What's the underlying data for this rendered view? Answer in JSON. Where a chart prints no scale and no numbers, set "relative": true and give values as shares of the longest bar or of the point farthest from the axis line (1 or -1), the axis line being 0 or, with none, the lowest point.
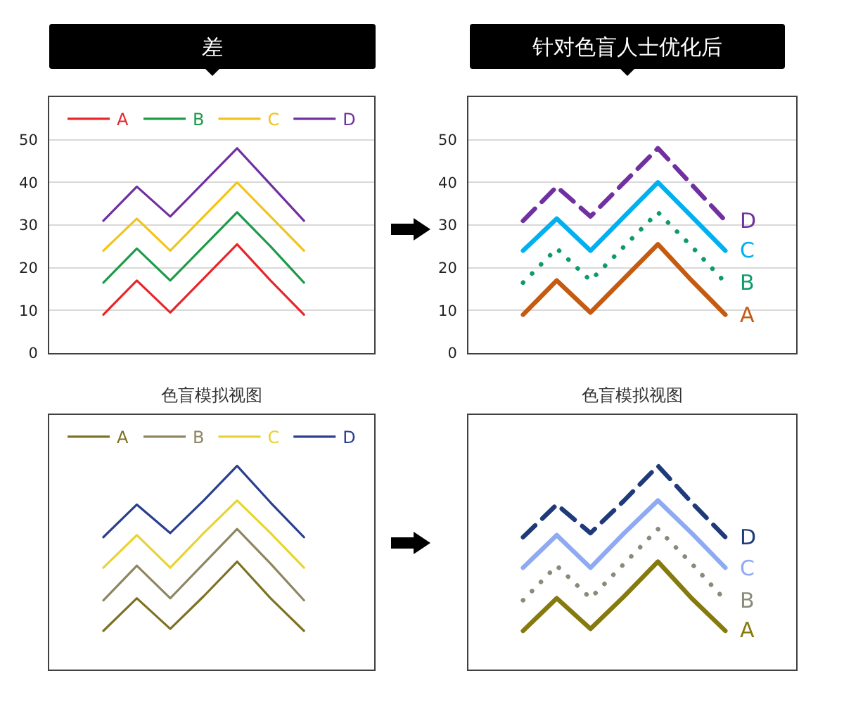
{
  "chart_data": [
    {
      "type": "line",
      "title": "差",
      "categories": [
        null,
        null,
        null,
        null,
        null,
        null,
        null
      ],
      "series": [
        {
          "name": "A",
          "color": "#e6262a",
          "values": [
            9,
            17,
            9.5,
            17.5,
            25.5,
            17,
            9
          ]
        },
        {
          "name": "B",
          "color": "#1e9a48",
          "values": [
            16.5,
            24.5,
            17,
            25,
            33,
            25,
            16.5
          ]
        },
        {
          "name": "C",
          "color": "#f2c41a",
          "values": [
            24,
            31.5,
            24,
            32,
            40,
            32,
            24
          ]
        },
        {
          "name": "D",
          "color": "#7030a0",
          "values": [
            31,
            39,
            32,
            40,
            48,
            39.5,
            31
          ]
        }
      ],
      "ylim": [
        0,
        60
      ],
      "yticks": [
        0,
        10,
        20,
        30,
        40,
        50
      ],
      "grid": "y",
      "legend": "top",
      "tick_labels": "y"
    },
    {
      "type": "line",
      "title": "针对色盲人士优化后",
      "categories": [
        null,
        null,
        null,
        null,
        null,
        null,
        null
      ],
      "series": [
        {
          "name": "A",
          "color": "#c55a11",
          "line_style": "solid",
          "values": [
            9,
            17,
            9.5,
            17.5,
            25.5,
            17,
            9
          ]
        },
        {
          "name": "B",
          "color": "#0f9a6e",
          "line_style": "dotted",
          "values": [
            16.5,
            24.5,
            17,
            25,
            33,
            25,
            16.5
          ]
        },
        {
          "name": "C",
          "color": "#00b0f0",
          "line_style": "solid",
          "values": [
            24,
            31.5,
            24,
            32,
            40,
            32,
            24
          ]
        },
        {
          "name": "D",
          "color": "#7030a0",
          "line_style": "dashed",
          "values": [
            31,
            39,
            32,
            40,
            48,
            39.5,
            31
          ]
        }
      ],
      "ylim": [
        0,
        60
      ],
      "yticks": [
        0,
        10,
        20,
        30,
        40,
        50
      ],
      "grid": "y",
      "legend": false,
      "tick_labels": "y"
    },
    {
      "type": "line",
      "title": "色盲模拟视图",
      "relative": true,
      "categories": [
        null,
        null,
        null,
        null,
        null,
        null,
        null
      ],
      "series": [
        {
          "name": "A",
          "color": "#7d7223",
          "values": [
            0.19,
            0.35,
            0.2,
            0.36,
            0.53,
            0.35,
            0.19
          ]
        },
        {
          "name": "B",
          "color": "#8e8660",
          "values": [
            0.34,
            0.51,
            0.35,
            0.52,
            0.69,
            0.52,
            0.34
          ]
        },
        {
          "name": "C",
          "color": "#e8d430",
          "values": [
            0.5,
            0.66,
            0.5,
            0.67,
            0.83,
            0.67,
            0.5
          ]
        },
        {
          "name": "D",
          "color": "#2a3f8e",
          "values": [
            0.65,
            0.81,
            0.67,
            0.83,
            1,
            0.82,
            0.65
          ]
        }
      ],
      "legend": "top",
      "tick_labels": false
    },
    {
      "type": "line",
      "title": "色盲模拟视图",
      "relative": true,
      "categories": [
        null,
        null,
        null,
        null,
        null,
        null,
        null
      ],
      "series": [
        {
          "name": "A",
          "color": "#867a0e",
          "line_style": "solid",
          "values": [
            0.19,
            0.35,
            0.2,
            0.36,
            0.53,
            0.35,
            0.19
          ]
        },
        {
          "name": "B",
          "color": "#8a8a7a",
          "line_style": "dotted",
          "values": [
            0.34,
            0.51,
            0.35,
            0.52,
            0.69,
            0.52,
            0.34
          ]
        },
        {
          "name": "C",
          "color": "#8eaaf2",
          "line_style": "solid",
          "values": [
            0.5,
            0.66,
            0.5,
            0.67,
            0.83,
            0.67,
            0.5
          ]
        },
        {
          "name": "D",
          "color": "#1f3a7a",
          "line_style": "dashed",
          "values": [
            0.65,
            0.81,
            0.67,
            0.83,
            1,
            0.82,
            0.65
          ]
        }
      ],
      "legend": false,
      "tick_labels": false
    }
  ]
}
